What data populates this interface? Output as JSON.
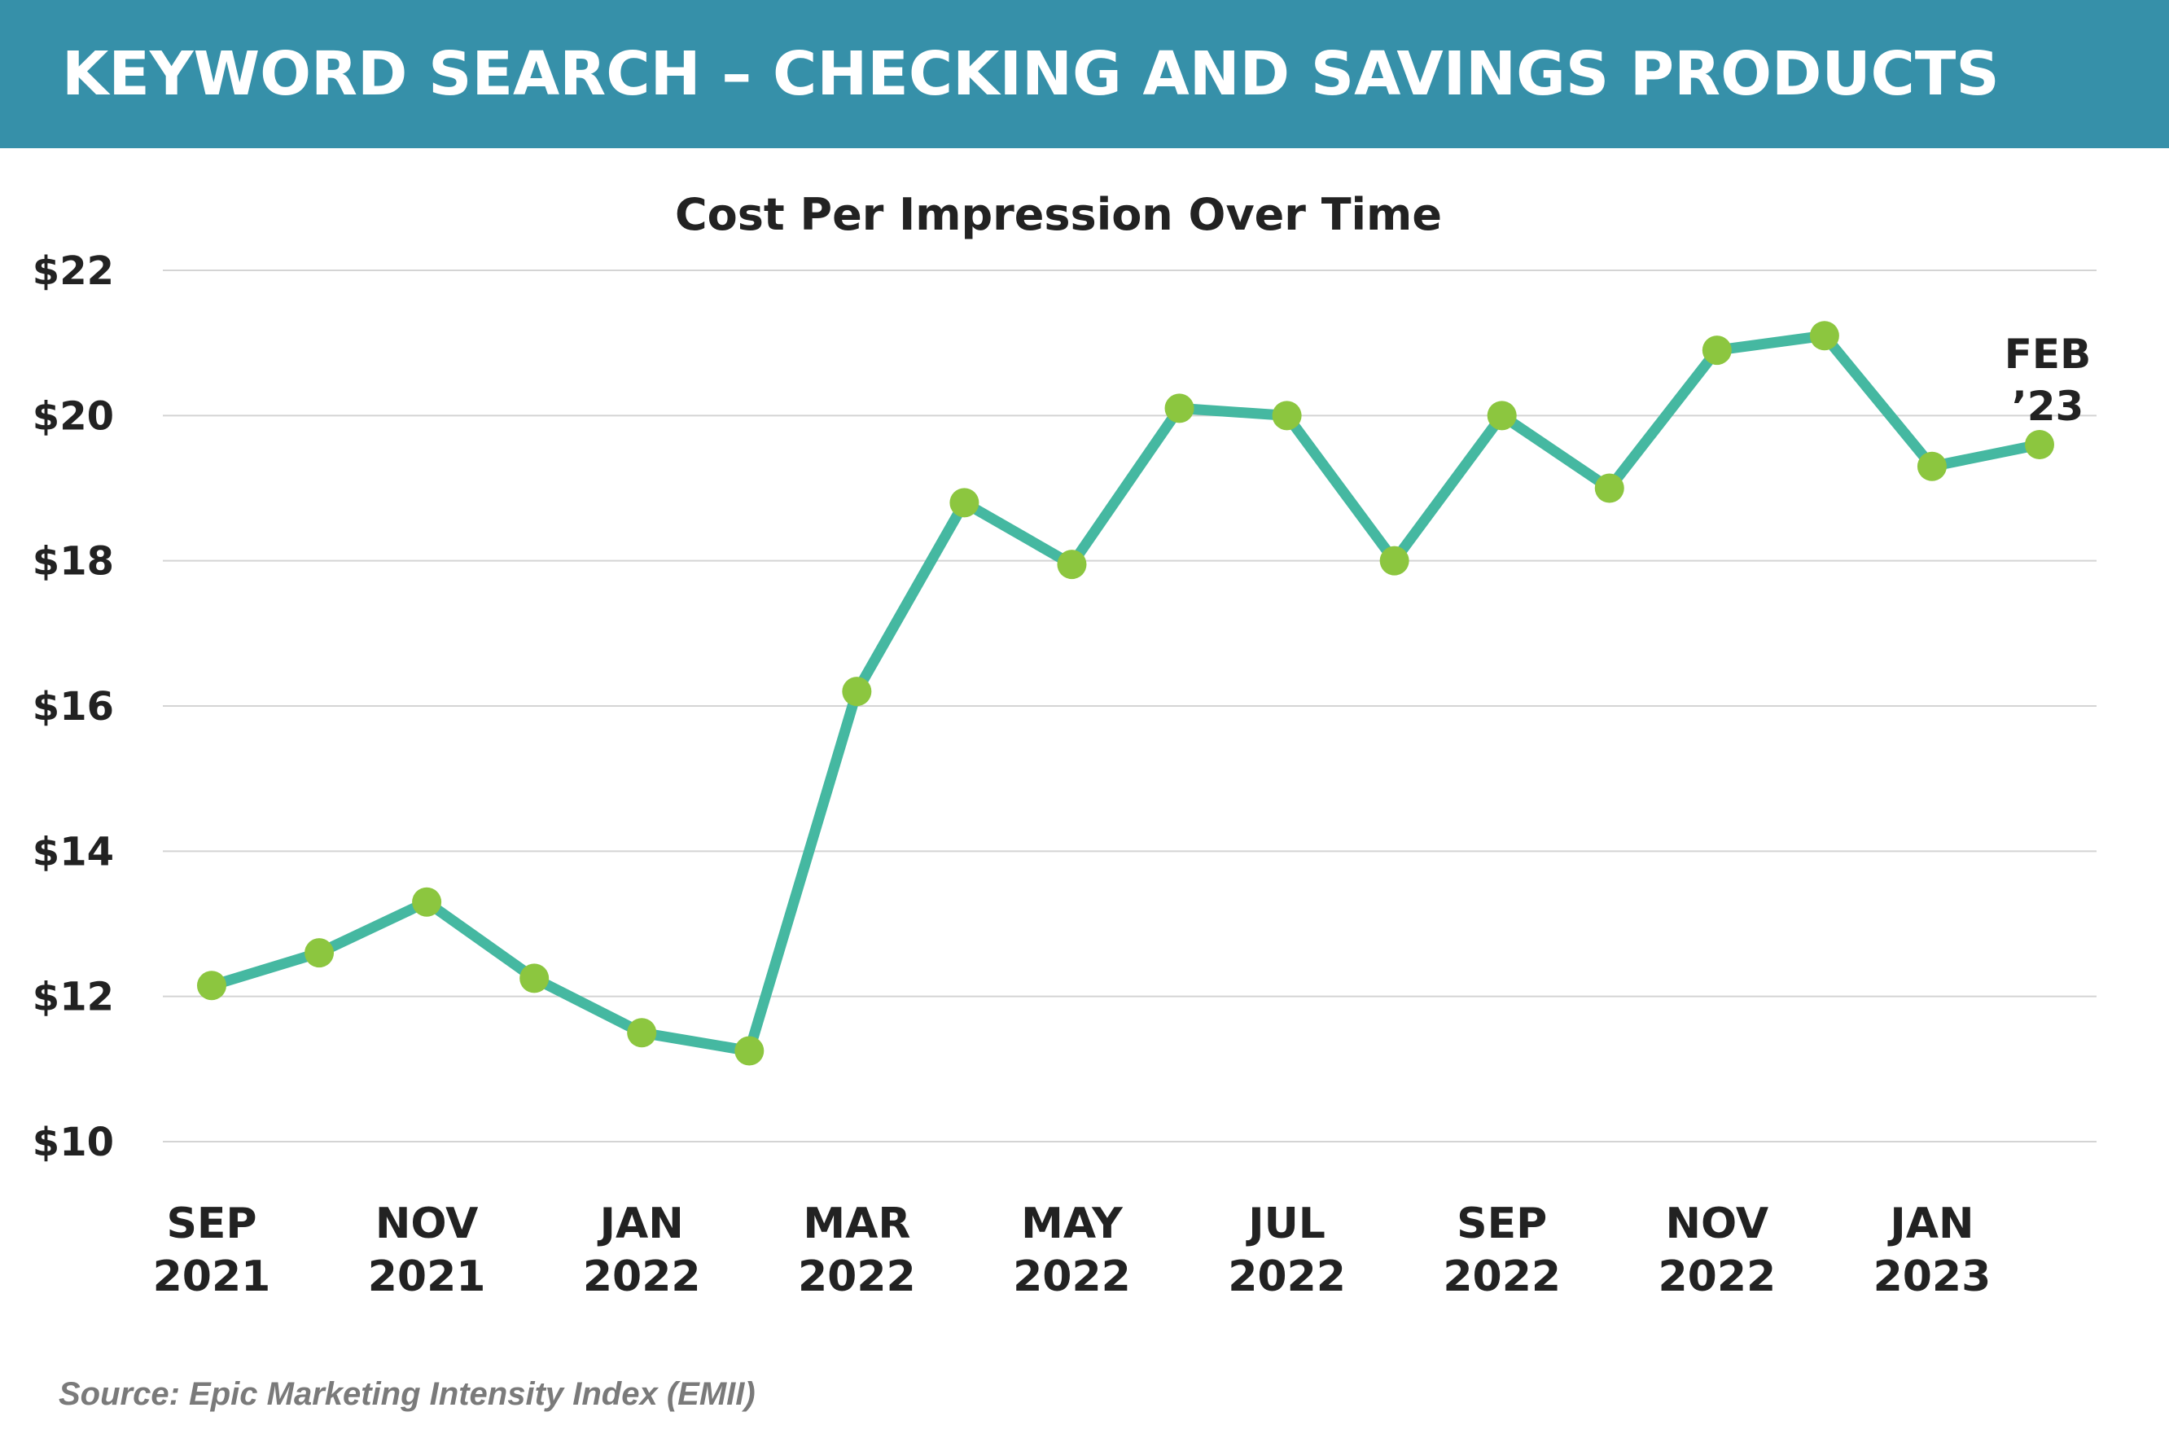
{
  "header": {
    "title": "KEYWORD SEARCH – CHECKING AND SAVINGS PRODUCTS"
  },
  "chart_data": {
    "type": "line",
    "title": "Cost Per Impression Over Time",
    "ylim": [
      10,
      22
    ],
    "y_ticks": [
      10,
      12,
      14,
      16,
      18,
      20,
      22
    ],
    "y_tick_labels": [
      "$10",
      "$12",
      "$14",
      "$16",
      "$18",
      "$20",
      "$22"
    ],
    "grid": true,
    "x": [
      "SEP 2021",
      "OCT 2021",
      "NOV 2021",
      "DEC 2021",
      "JAN 2022",
      "FEB 2022",
      "MAR 2022",
      "APR 2022",
      "MAY 2022",
      "JUN 2022",
      "JUL 2022",
      "AUG 2022",
      "SEP 2022",
      "OCT 2022",
      "NOV 2022",
      "DEC 2022",
      "JAN 2023",
      "FEB 2023"
    ],
    "values": [
      12.15,
      12.6,
      13.3,
      12.25,
      11.5,
      11.25,
      16.2,
      18.8,
      17.95,
      20.1,
      20.0,
      18.0,
      20.0,
      19.0,
      20.9,
      21.1,
      19.3,
      19.6
    ],
    "x_tick_labels": [
      {
        "index": 0,
        "line1": "SEP",
        "line2": "2021"
      },
      {
        "index": 2,
        "line1": "NOV",
        "line2": "2021"
      },
      {
        "index": 4,
        "line1": "JAN",
        "line2": "2022"
      },
      {
        "index": 6,
        "line1": "MAR",
        "line2": "2022"
      },
      {
        "index": 8,
        "line1": "MAY",
        "line2": "2022"
      },
      {
        "index": 10,
        "line1": "JUL",
        "line2": "2022"
      },
      {
        "index": 12,
        "line1": "SEP",
        "line2": "2022"
      },
      {
        "index": 14,
        "line1": "NOV",
        "line2": "2022"
      },
      {
        "index": 16,
        "line1": "JAN",
        "line2": "2023"
      }
    ],
    "annotation": {
      "index": 17,
      "line1": "FEB",
      "line2": "’23"
    },
    "colors": {
      "line": "#45b8a1",
      "marker": "#8cc63f",
      "grid": "#d4d4d4",
      "text": "#222222"
    }
  },
  "footer": {
    "source": "Source: Epic Marketing Intensity Index (EMII)"
  }
}
